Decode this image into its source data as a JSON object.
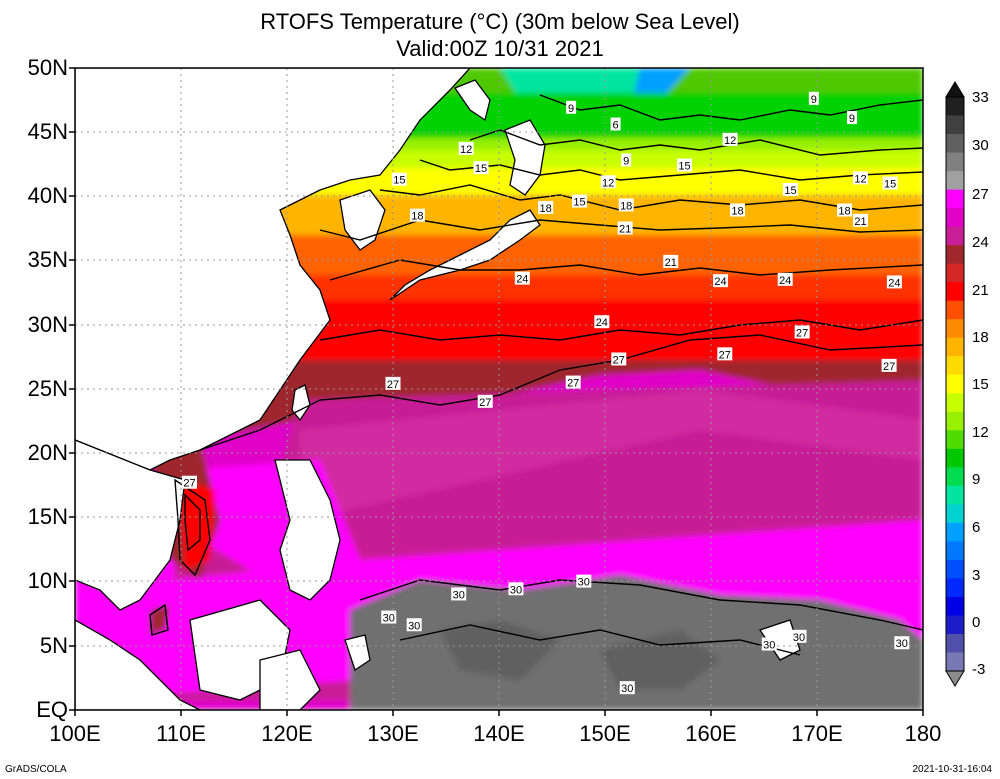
{
  "title_line1": "RTOFS Temperature (°C) (30m below Sea Level)",
  "title_line2": "Valid:00Z 10/31 2021",
  "lat_labels": [
    "50N",
    "45N",
    "40N",
    "35N",
    "30N",
    "25N",
    "20N",
    "15N",
    "10N",
    "5N",
    "EQ"
  ],
  "lon_labels": [
    "100E",
    "110E",
    "120E",
    "130E",
    "140E",
    "150E",
    "160E",
    "170E",
    "180"
  ],
  "colorbar_labels": [
    "33",
    "30",
    "27",
    "24",
    "21",
    "18",
    "15",
    "12",
    "9",
    "6",
    "3",
    "0",
    "-3"
  ],
  "colorbar_colors": [
    "#202020",
    "#404040",
    "#606060",
    "#808080",
    "#a0a0a0",
    "#ff00ff",
    "#e000c8",
    "#c81e96",
    "#a0282d",
    "#d22828",
    "#ff0000",
    "#ff5000",
    "#ff8c00",
    "#ffb400",
    "#ffdc00",
    "#ffff00",
    "#c8ff00",
    "#96f000",
    "#50dc00",
    "#00c800",
    "#00dc50",
    "#00e6a0",
    "#00d2d2",
    "#00a0ff",
    "#0078ff",
    "#0050ff",
    "#0028ff",
    "#0000e6",
    "#1e1ec8",
    "#5050aa",
    "#7878b4"
  ],
  "contour_labels": [
    {
      "text": "9",
      "lon": 146.8,
      "lat": 46.9
    },
    {
      "text": "6",
      "lon": 151.0,
      "lat": 45.6
    },
    {
      "text": "9",
      "lon": 169.7,
      "lat": 47.6
    },
    {
      "text": "9",
      "lon": 173.3,
      "lat": 46.1
    },
    {
      "text": "12",
      "lon": 136.9,
      "lat": 43.7
    },
    {
      "text": "12",
      "lon": 161.8,
      "lat": 44.4
    },
    {
      "text": "9",
      "lon": 152.0,
      "lat": 42.8
    },
    {
      "text": "15",
      "lon": 138.3,
      "lat": 42.2
    },
    {
      "text": "15",
      "lon": 157.5,
      "lat": 42.4
    },
    {
      "text": "15",
      "lon": 130.6,
      "lat": 41.3
    },
    {
      "text": "12",
      "lon": 150.3,
      "lat": 41.1
    },
    {
      "text": "12",
      "lon": 174.1,
      "lat": 41.4
    },
    {
      "text": "15",
      "lon": 176.9,
      "lat": 41.0
    },
    {
      "text": "15",
      "lon": 167.5,
      "lat": 40.5
    },
    {
      "text": "15",
      "lon": 147.6,
      "lat": 39.6
    },
    {
      "text": "18",
      "lon": 144.4,
      "lat": 39.1
    },
    {
      "text": "18",
      "lon": 152.0,
      "lat": 39.3
    },
    {
      "text": "18",
      "lon": 162.5,
      "lat": 38.9
    },
    {
      "text": "18",
      "lon": 172.6,
      "lat": 38.9
    },
    {
      "text": "18",
      "lon": 132.3,
      "lat": 38.5
    },
    {
      "text": "21",
      "lon": 151.9,
      "lat": 37.5
    },
    {
      "text": "21",
      "lon": 174.1,
      "lat": 38.1
    },
    {
      "text": "21",
      "lon": 156.2,
      "lat": 34.9
    },
    {
      "text": "24",
      "lon": 142.2,
      "lat": 33.6
    },
    {
      "text": "24",
      "lon": 160.9,
      "lat": 33.4
    },
    {
      "text": "24",
      "lon": 167.0,
      "lat": 33.5
    },
    {
      "text": "24",
      "lon": 177.3,
      "lat": 33.3
    },
    {
      "text": "24",
      "lon": 149.7,
      "lat": 30.2
    },
    {
      "text": "27",
      "lon": 168.6,
      "lat": 29.4
    },
    {
      "text": "27",
      "lon": 161.3,
      "lat": 27.7
    },
    {
      "text": "27",
      "lon": 151.3,
      "lat": 27.3
    },
    {
      "text": "27",
      "lon": 176.8,
      "lat": 26.8
    },
    {
      "text": "27",
      "lon": 147.0,
      "lat": 25.5
    },
    {
      "text": "27",
      "lon": 130.0,
      "lat": 25.4
    },
    {
      "text": "27",
      "lon": 138.7,
      "lat": 24.0
    },
    {
      "text": "27",
      "lon": 110.8,
      "lat": 17.7
    },
    {
      "text": "30",
      "lon": 148.0,
      "lat": 10.0
    },
    {
      "text": "30",
      "lon": 141.6,
      "lat": 9.4
    },
    {
      "text": "30",
      "lon": 136.2,
      "lat": 9.0
    },
    {
      "text": "30",
      "lon": 129.6,
      "lat": 7.2
    },
    {
      "text": "30",
      "lon": 132.0,
      "lat": 6.6
    },
    {
      "text": "30",
      "lon": 168.3,
      "lat": 5.7
    },
    {
      "text": "30",
      "lon": 165.5,
      "lat": 5.1
    },
    {
      "text": "30",
      "lon": 178.0,
      "lat": 5.2
    },
    {
      "text": "30",
      "lon": 152.1,
      "lat": 1.7
    }
  ],
  "credit_left": "GrADS/COLA",
  "credit_right": "2021-10-31-16:04"
}
